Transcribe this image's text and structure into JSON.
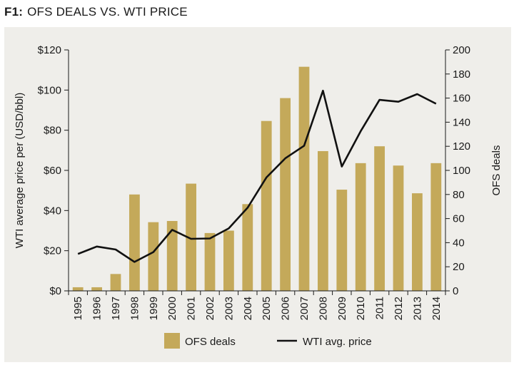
{
  "header": {
    "figure_id": "F1:",
    "title": "OFS DEALS VS. WTI PRICE"
  },
  "colors": {
    "background": "#efeeea",
    "bar": "#c4a95a",
    "line": "#111111",
    "axis": "#1a1a1a"
  },
  "chart_data": {
    "type": "bar",
    "title": "OFS DEALS VS. WTI PRICE",
    "categories": [
      "1995",
      "1996",
      "1997",
      "1998",
      "1999",
      "2000",
      "2001",
      "2002",
      "2003",
      "2004",
      "2005",
      "2006",
      "2007",
      "2008",
      "2009",
      "2010",
      "2011",
      "2012",
      "2013",
      "2014"
    ],
    "series": [
      {
        "name": "OFS deals",
        "type": "bar",
        "axis": "right",
        "values": [
          3,
          3,
          14,
          80,
          57,
          58,
          89,
          48,
          50,
          72,
          141,
          160,
          186,
          116,
          84,
          106,
          120,
          104,
          81,
          106
        ]
      },
      {
        "name": "WTI avg. price",
        "type": "line",
        "axis": "left",
        "values": [
          18.4,
          22.1,
          20.6,
          14.4,
          19.3,
          30.4,
          25.9,
          26.1,
          31.1,
          41.4,
          56.5,
          66.0,
          72.3,
          99.7,
          61.9,
          79.5,
          95.1,
          94.2,
          98.0,
          93.2
        ]
      }
    ],
    "y_left": {
      "label": "WTI average price per (USD/bbl)",
      "ticks": [
        "$0",
        "$20",
        "$40",
        "$60",
        "$80",
        "$100",
        "$120"
      ],
      "range": [
        0,
        120
      ]
    },
    "y_right": {
      "label": "OFS deals",
      "ticks": [
        "0",
        "20",
        "40",
        "60",
        "80",
        "100",
        "120",
        "140",
        "160",
        "180",
        "200"
      ],
      "range": [
        0,
        200
      ]
    },
    "legend": {
      "position": "bottom",
      "items": [
        "OFS deals",
        "WTI avg. price"
      ]
    },
    "grid": false
  }
}
